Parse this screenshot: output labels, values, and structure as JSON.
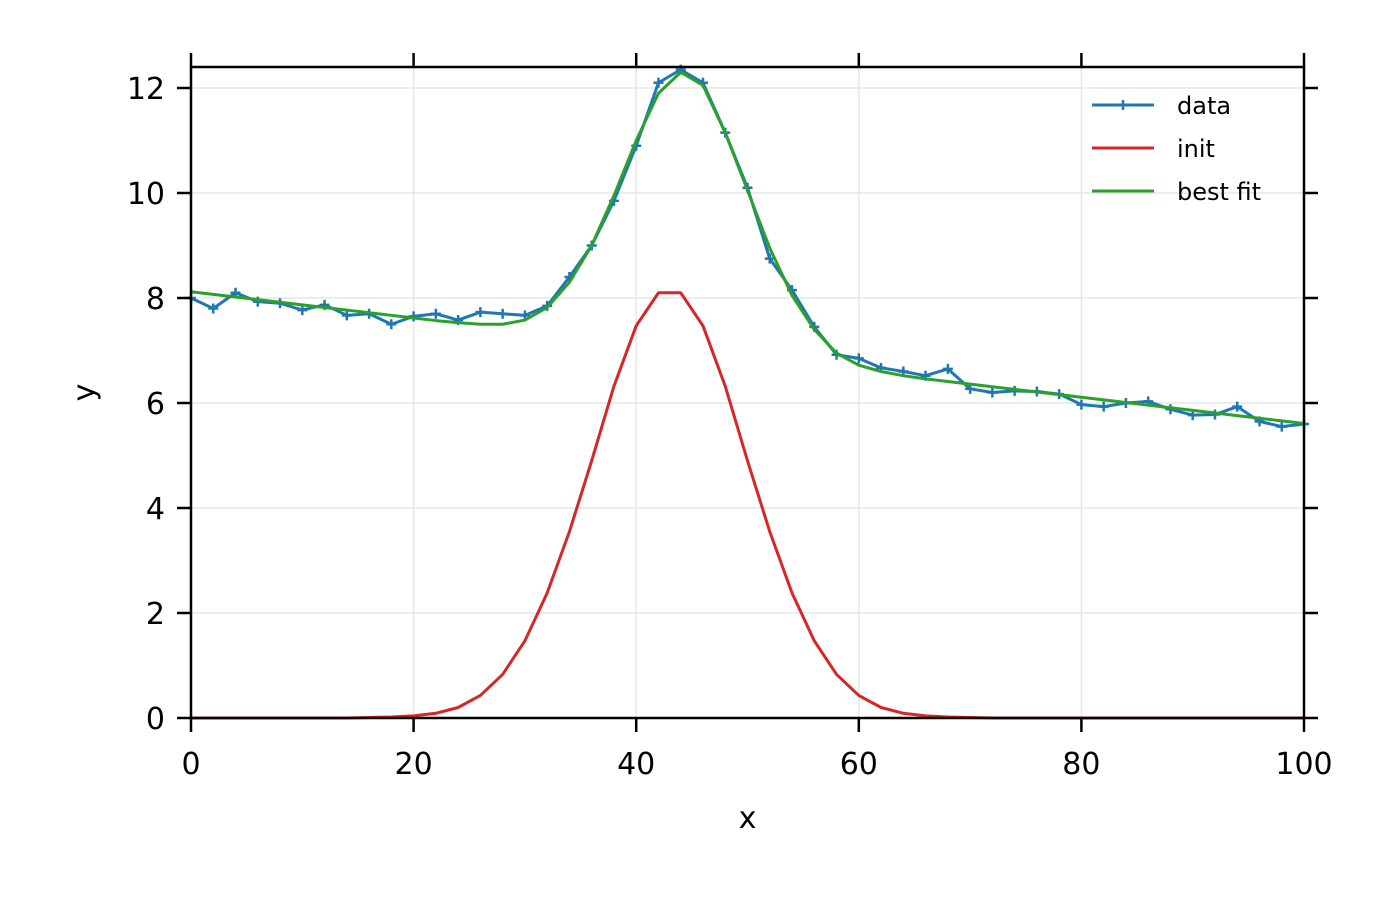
{
  "chart_data": {
    "type": "line",
    "title": "",
    "xlabel": "x",
    "ylabel": "y",
    "xlim": [
      0,
      100
    ],
    "ylim": [
      0,
      12.4
    ],
    "xticks": [
      0,
      20,
      40,
      60,
      80,
      100
    ],
    "yticks": [
      0,
      2,
      4,
      6,
      8,
      10,
      12
    ],
    "grid": true,
    "legend_position": "top-right",
    "x": [
      0,
      2,
      4,
      6,
      8,
      10,
      12,
      14,
      16,
      18,
      20,
      22,
      24,
      26,
      28,
      30,
      32,
      34,
      36,
      38,
      40,
      42,
      44,
      46,
      48,
      50,
      52,
      54,
      56,
      58,
      60,
      62,
      64,
      66,
      68,
      70,
      72,
      74,
      76,
      78,
      80,
      82,
      84,
      86,
      88,
      90,
      92,
      94,
      96,
      98,
      100
    ],
    "series": [
      {
        "name": "data",
        "color": "#1f77b4",
        "marker": "plus",
        "values": [
          8.0,
          7.8,
          8.1,
          7.93,
          7.9,
          7.77,
          7.87,
          7.67,
          7.7,
          7.5,
          7.65,
          7.7,
          7.58,
          7.73,
          7.7,
          7.67,
          7.85,
          8.4,
          9.0,
          9.85,
          10.9,
          12.1,
          12.35,
          12.1,
          11.15,
          10.1,
          8.75,
          8.15,
          7.45,
          6.92,
          6.85,
          6.67,
          6.6,
          6.52,
          6.65,
          6.27,
          6.2,
          6.23,
          6.22,
          6.17,
          5.97,
          5.93,
          6.0,
          6.03,
          5.88,
          5.77,
          5.78,
          5.93,
          5.65,
          5.55,
          5.6
        ]
      },
      {
        "name": "init",
        "color": "#d62728",
        "marker": "none",
        "values": [
          0,
          0,
          0,
          0,
          0,
          0,
          0,
          0,
          0.01,
          0.02,
          0.04,
          0.09,
          0.2,
          0.43,
          0.83,
          1.47,
          2.38,
          3.55,
          4.9,
          6.32,
          7.47,
          8.1,
          8.1,
          7.47,
          6.32,
          4.9,
          3.55,
          2.38,
          1.47,
          0.83,
          0.43,
          0.2,
          0.09,
          0.04,
          0.02,
          0.01,
          0,
          0,
          0,
          0,
          0,
          0,
          0,
          0,
          0,
          0,
          0,
          0,
          0,
          0,
          0
        ]
      },
      {
        "name": "best fit",
        "color": "#2ca02c",
        "marker": "none",
        "values": [
          8.12,
          8.07,
          8.02,
          7.97,
          7.92,
          7.87,
          7.82,
          7.77,
          7.72,
          7.67,
          7.62,
          7.57,
          7.53,
          7.5,
          7.5,
          7.58,
          7.82,
          8.3,
          9.0,
          9.95,
          11.0,
          11.9,
          12.3,
          12.05,
          11.15,
          10.05,
          8.95,
          8.05,
          7.4,
          6.95,
          6.72,
          6.6,
          6.52,
          6.46,
          6.41,
          6.36,
          6.31,
          6.26,
          6.21,
          6.16,
          6.11,
          6.06,
          6.01,
          5.96,
          5.91,
          5.86,
          5.81,
          5.76,
          5.71,
          5.66,
          5.61
        ]
      }
    ]
  }
}
